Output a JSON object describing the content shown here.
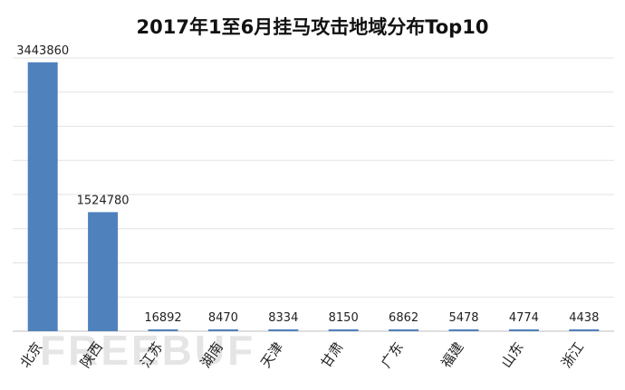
{
  "chart_data": {
    "type": "bar",
    "title": "2017年1至6月挂马攻击地域分布Top10",
    "categories": [
      "北京",
      "陕西",
      "江苏",
      "湖南",
      "天津",
      "甘肃",
      "广东",
      "福建",
      "山东",
      "浙江"
    ],
    "values": [
      3443860,
      1524780,
      16892,
      8470,
      8334,
      8150,
      6862,
      5478,
      4774,
      4438
    ],
    "ylim": [
      0,
      3500000
    ],
    "grid": true,
    "bar_color": "#4f81bd",
    "data_labels": [
      "3443860",
      "1524780",
      "16892",
      "8470",
      "8334",
      "8150",
      "6862",
      "5478",
      "4774",
      "4438"
    ]
  },
  "watermark_text": "FREEBUF"
}
